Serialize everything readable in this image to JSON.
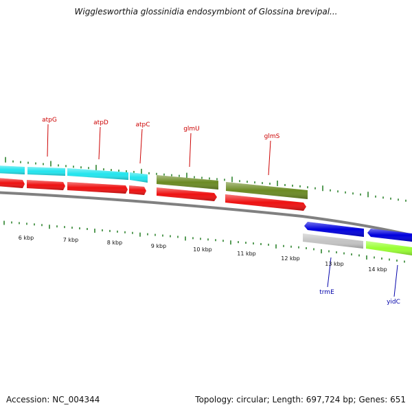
{
  "title": "Wigglesworthia glossinidia endosymbiont of Glossina brevipal...",
  "footer": {
    "accession": "Accession: NC_004344",
    "summary": "Topology: circular; Length: 697,724 bp; Genes: 651"
  },
  "colors": {
    "backbone": "#808080",
    "skew": "#1f7a1f",
    "cyan": "#22e5ee",
    "red": "#ee1111",
    "olive": "#6b8a23",
    "blue": "#0000dd",
    "gray": "#c4c4c4",
    "lime": "#99ff33",
    "label_forward": "#cc0000",
    "label_reverse": "#0000aa"
  },
  "gene_labels": [
    {
      "text": "atpG",
      "strand": "forward"
    },
    {
      "text": "atpD",
      "strand": "forward"
    },
    {
      "text": "atpC",
      "strand": "forward"
    },
    {
      "text": "glmU",
      "strand": "forward"
    },
    {
      "text": "glmS",
      "strand": "forward"
    },
    {
      "text": "trmE",
      "strand": "reverse"
    },
    {
      "text": "yidC",
      "strand": "reverse"
    }
  ],
  "tick_labels": [
    "6 kbp",
    "7 kbp",
    "8 kbp",
    "9 kbp",
    "10 kbp",
    "11 kbp",
    "12 kbp",
    "13 kbp",
    "14 kbp"
  ]
}
